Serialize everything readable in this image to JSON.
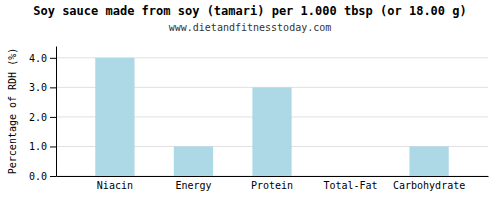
{
  "chart_data": {
    "type": "bar",
    "title": "Soy sauce made from soy (tamari) per 1.000 tbsp (or 18.00 g)",
    "subtitle": "www.dietandfitnesstoday.com",
    "categories": [
      "Niacin",
      "Energy",
      "Protein",
      "Total-Fat",
      "Carbohydrate"
    ],
    "values": [
      4.0,
      1.0,
      3.0,
      0.0,
      1.0
    ],
    "color": "#add8e6",
    "ylabel": "Percentage of RDH (%)",
    "ylim": [
      0,
      4.4
    ],
    "yticks": [
      {
        "value": 0.0,
        "label": "0.0"
      },
      {
        "value": 1.0,
        "label": "1.0"
      },
      {
        "value": 2.0,
        "label": "2.0"
      },
      {
        "value": 3.0,
        "label": "3.0"
      },
      {
        "value": 4.0,
        "label": "4.0"
      }
    ],
    "grid": true
  }
}
